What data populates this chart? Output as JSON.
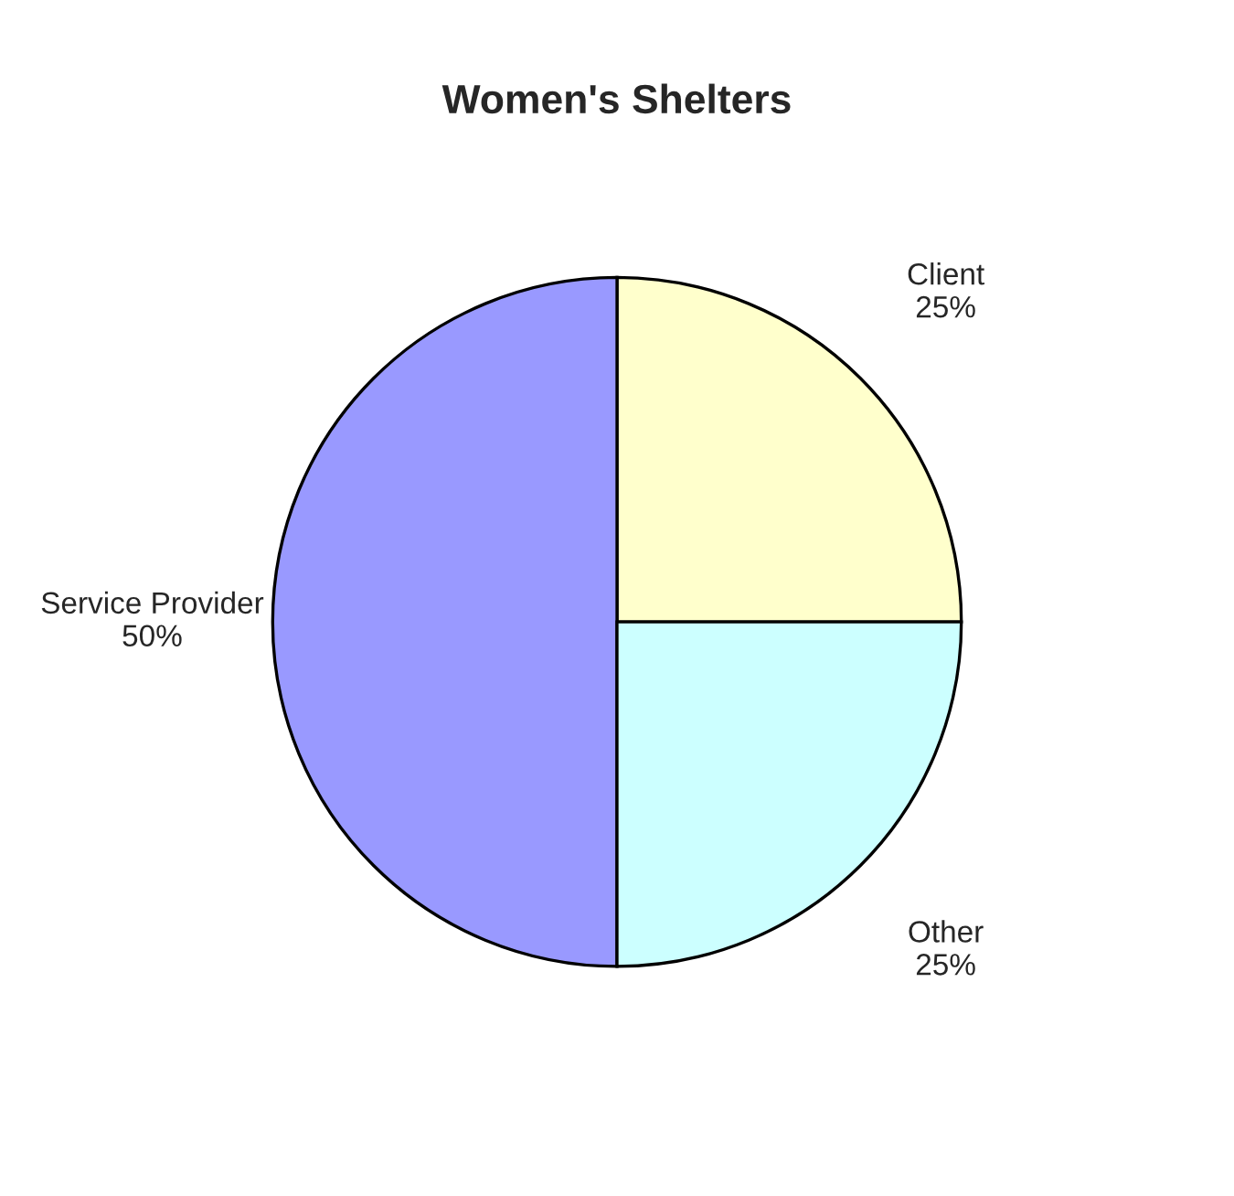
{
  "chart_data": {
    "type": "pie",
    "title": "Women's Shelters",
    "categories": [
      "Client",
      "Service Provider",
      "Other"
    ],
    "values": [
      25,
      50,
      25
    ],
    "value_labels": [
      "25%",
      "50%",
      "25%"
    ],
    "colors": [
      "#ffffcc",
      "#9999ff",
      "#ccffff"
    ],
    "legend": false
  }
}
